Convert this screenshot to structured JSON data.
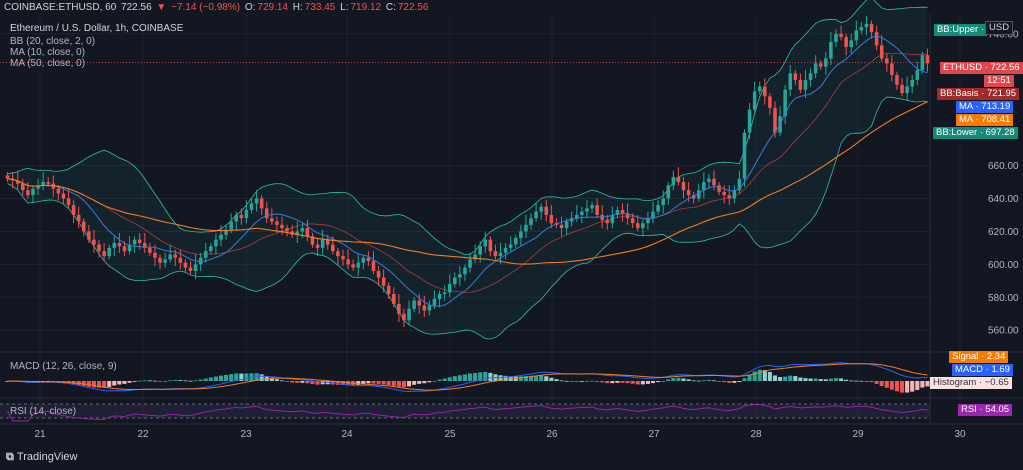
{
  "header": {
    "symbol": "COINBASE:ETHUSD, 60",
    "last": "722.56",
    "change_arrow": "▼",
    "change": "−7.14 (−0.98%)",
    "o_label": "O:",
    "o_val": "729.14",
    "h_label": "H:",
    "h_val": "733.45",
    "l_label": "L:",
    "l_val": "719.12",
    "c_label": "C:",
    "c_val": "722.56",
    "title": "Ethereum / U.S. Dollar, 1h, COINBASE",
    "bb": "BB (20, close, 2, 0)",
    "ma10": "MA (10, close, 0)",
    "ma50": "MA (50, close, 0)"
  },
  "macd_label": "MACD (12, 26, close, 9)",
  "rsi_label": "RSI (14, close)",
  "logo": "TradingView",
  "tags": {
    "bbupper": "BB:Upper",
    "usd": "USD",
    "ethusd": "ETHUSD",
    "ethusd_val": "722.56",
    "countdown": "12:51",
    "bbbasis": "BB:Basis",
    "bbbasis_val": "721.95",
    "ma1": "MA",
    "ma1_val": "713.19",
    "ma2": "MA",
    "ma2_val": "708.41",
    "bblower": "BB:Lower",
    "bblower_val": "697.28",
    "signal": "Signal",
    "signal_val": "2.34",
    "macd": "MACD",
    "macd_val": "1.69",
    "hist": "Histogram",
    "hist_val": "−0.65",
    "rsi": "RSI",
    "rsi_val": "54.05"
  },
  "colors": {
    "bg": "#131722",
    "up": "#26a69a",
    "down": "#ef5350",
    "bb": "#2dbfa8",
    "ma10": "#3a7bd5",
    "ma50": "#f57c20",
    "basis": "#b23a3a",
    "rsi": "#9c27b0"
  },
  "chart_data": {
    "type": "candlestick",
    "y_ticks": [
      740,
      660,
      640,
      620,
      600,
      580,
      560
    ],
    "ylim": [
      548,
      752
    ],
    "x_ticks": [
      "21",
      "22",
      "23",
      "24",
      "25",
      "26",
      "27",
      "28",
      "29",
      "30"
    ],
    "closes_hourly": [
      652,
      651,
      649,
      645,
      642,
      646,
      648,
      650,
      649,
      646,
      643,
      640,
      636,
      630,
      626,
      620,
      615,
      612,
      608,
      605,
      610,
      613,
      611,
      608,
      612,
      615,
      613,
      610,
      607,
      604,
      601,
      603,
      606,
      604,
      601,
      598,
      596,
      600,
      604,
      608,
      611,
      615,
      618,
      621,
      626,
      630,
      628,
      633,
      637,
      640,
      634,
      628,
      626,
      624,
      622,
      620,
      618,
      620,
      622,
      617,
      612,
      610,
      615,
      612,
      608,
      605,
      603,
      600,
      598,
      601,
      604,
      602,
      596,
      592,
      587,
      582,
      576,
      570,
      566,
      573,
      578,
      575,
      572,
      575,
      579,
      582,
      583,
      588,
      592,
      594,
      598,
      603,
      606,
      611,
      615,
      608,
      605,
      607,
      610,
      612,
      616,
      620,
      624,
      628,
      632,
      635,
      630,
      625,
      624,
      622,
      626,
      628,
      630,
      632,
      634,
      636,
      630,
      627,
      625,
      630,
      633,
      631,
      628,
      625,
      622,
      625,
      628,
      632,
      636,
      640,
      648,
      653,
      650,
      645,
      642,
      640,
      645,
      650,
      652,
      648,
      644,
      642,
      640,
      645,
      652,
      680,
      694,
      705,
      708,
      702,
      695,
      680,
      690,
      706,
      716,
      712,
      706,
      712,
      716,
      722,
      720,
      725,
      735,
      740,
      738,
      732,
      736,
      742,
      744,
      746,
      741,
      733,
      725,
      722,
      715,
      709,
      704,
      708,
      712,
      718,
      727,
      722
    ]
  }
}
